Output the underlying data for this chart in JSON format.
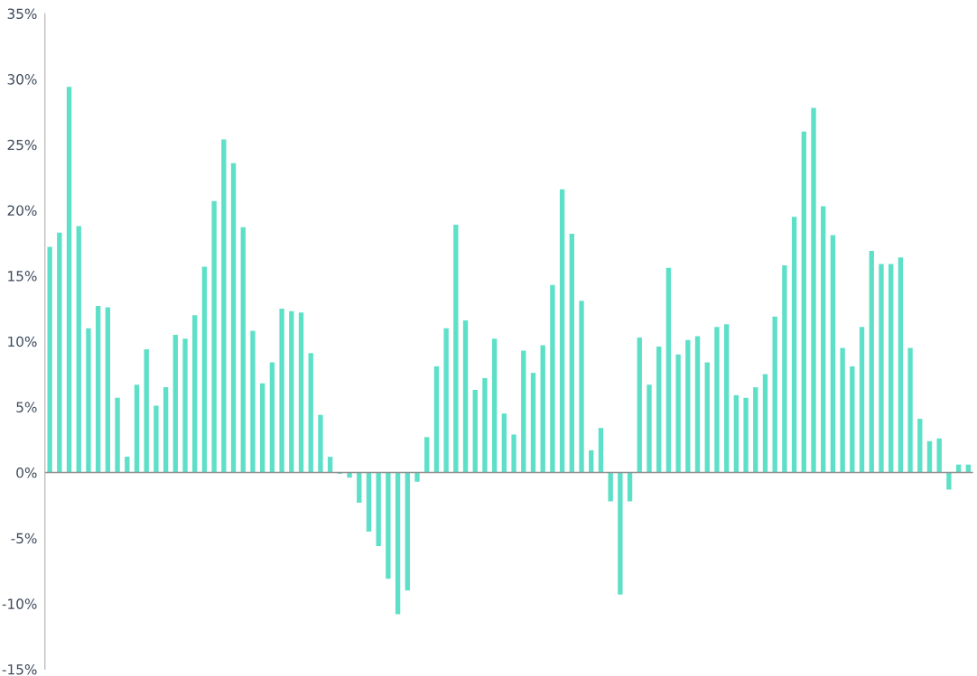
{
  "chart_data": {
    "type": "bar",
    "categories": [
      null,
      null,
      null,
      null,
      null,
      null,
      null,
      null,
      null,
      null,
      null,
      null,
      null,
      null,
      null,
      null,
      null,
      null,
      null,
      null,
      null,
      null,
      null,
      null,
      null,
      null,
      null,
      null,
      null,
      null,
      null,
      null,
      null,
      null,
      null,
      null,
      null,
      null,
      null,
      null,
      null,
      null,
      null,
      null,
      null,
      null,
      null,
      null,
      null,
      null,
      null,
      null,
      null,
      null,
      null,
      null,
      null,
      null,
      null,
      null,
      null,
      null,
      null,
      null,
      null,
      null,
      null,
      null,
      null,
      null,
      null,
      null,
      null,
      null,
      null,
      null,
      null,
      null,
      null,
      null,
      null,
      null,
      null,
      null,
      null,
      null,
      null,
      null,
      null,
      null,
      null,
      null,
      null,
      null,
      null,
      null
    ],
    "values": [
      17.2,
      18.3,
      29.4,
      18.8,
      11.0,
      12.7,
      12.6,
      5.7,
      1.2,
      6.7,
      9.4,
      5.1,
      6.5,
      10.5,
      10.2,
      12.0,
      15.7,
      20.7,
      25.4,
      23.6,
      18.7,
      10.8,
      6.8,
      8.4,
      12.5,
      12.3,
      12.2,
      9.1,
      4.4,
      1.2,
      -0.1,
      -0.4,
      -2.3,
      -4.5,
      -5.6,
      -8.1,
      -10.8,
      -9.0,
      -0.7,
      2.7,
      8.1,
      11.0,
      18.9,
      11.6,
      6.3,
      7.2,
      10.2,
      4.5,
      2.9,
      9.3,
      7.6,
      9.7,
      14.3,
      21.6,
      18.2,
      13.1,
      1.7,
      3.4,
      -2.2,
      -9.3,
      -2.2,
      10.3,
      6.7,
      9.6,
      15.6,
      9.0,
      10.1,
      10.4,
      8.4,
      11.1,
      11.3,
      5.9,
      5.7,
      6.5,
      7.5,
      11.9,
      15.8,
      19.5,
      26.0,
      27.8,
      20.3,
      18.1,
      9.5,
      8.1,
      11.1,
      16.9,
      15.9,
      15.9,
      16.4,
      9.5,
      4.1,
      2.4,
      2.6,
      -1.3,
      0.6,
      0.6
    ],
    "color": "#5ee0c8",
    "ylim": [
      -15,
      35
    ],
    "yticks": [
      {
        "value": -15,
        "label": "-15%"
      },
      {
        "value": -10,
        "label": "-10%"
      },
      {
        "value": -5,
        "label": "-5%"
      },
      {
        "value": 0,
        "label": "0%"
      },
      {
        "value": 5,
        "label": "5%"
      },
      {
        "value": 10,
        "label": "10%"
      },
      {
        "value": 15,
        "label": "15%"
      },
      {
        "value": 20,
        "label": "20%"
      },
      {
        "value": 25,
        "label": "25%"
      },
      {
        "value": 30,
        "label": "30%"
      },
      {
        "value": 35,
        "label": "35%"
      }
    ],
    "tick_labels": "y",
    "grid": false,
    "legend": false,
    "ref_lines": [
      {
        "axis": "y",
        "value": 0,
        "color": "#909090"
      }
    ]
  }
}
